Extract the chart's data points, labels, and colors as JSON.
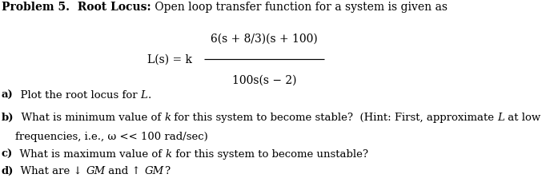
{
  "bg_color": "#ffffff",
  "text_color": "#000000",
  "fig_width": 6.81,
  "fig_height": 2.2,
  "dpi": 100,
  "fs_title": 10.0,
  "fs_body": 9.5,
  "title_segments": [
    [
      "Problem 5.",
      "bold"
    ],
    [
      "  Root Locus:",
      "bold"
    ],
    [
      " Open loop transfer function for a system is given as",
      "normal"
    ]
  ],
  "formula_lhs": "L(s) = k",
  "formula_num": "6(s + 8/3)(s + 100)",
  "formula_den": "100s(s − 2)",
  "body": [
    [
      [
        "a)",
        "bold"
      ],
      [
        "  Plot the root locus for ",
        "normal"
      ],
      [
        "L",
        "italic"
      ],
      [
        ".",
        "normal"
      ]
    ],
    [
      [
        "b)",
        "bold"
      ],
      [
        "  What is minimum value of ",
        "normal"
      ],
      [
        "k",
        "italic"
      ],
      [
        " for this system to become stable?  (Hint: First, approximate ",
        "normal"
      ],
      [
        "L",
        "italic"
      ],
      [
        " at low",
        "normal"
      ]
    ],
    [
      [
        "    frequencies, i.e., ω << 100 rad/sec)",
        "normal"
      ]
    ],
    [
      [
        "c)",
        "bold"
      ],
      [
        "  What is maximum value of ",
        "normal"
      ],
      [
        "k",
        "italic"
      ],
      [
        " for this system to become unstable?",
        "normal"
      ]
    ],
    [
      [
        "d)",
        "bold"
      ],
      [
        "  What are ↓ ",
        "normal"
      ],
      [
        "GM",
        "italic"
      ],
      [
        " and ↑ ",
        "normal"
      ],
      [
        "GM",
        "italic"
      ],
      [
        "?",
        "normal"
      ]
    ]
  ]
}
